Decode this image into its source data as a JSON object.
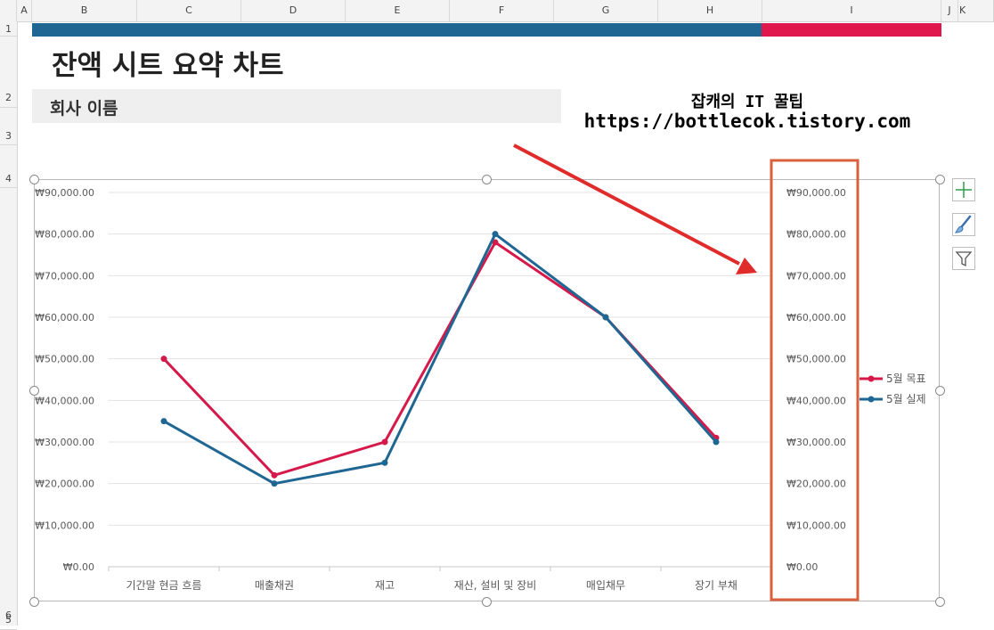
{
  "column_headers": [
    "A",
    "B",
    "C",
    "D",
    "E",
    "F",
    "G",
    "H",
    "I",
    "J",
    "K"
  ],
  "row_headers": [
    "1",
    "2",
    "3",
    "4",
    "5",
    "6"
  ],
  "sheet": {
    "title": "잔액 시트 요약 차트",
    "company_label": "회사 이름",
    "watermark_line1": "잡캐의 IT 꿀팁",
    "watermark_line2": "https://bottlecok.tistory.com"
  },
  "colors": {
    "band_blue": "#1f6792",
    "band_red": "#e0174c",
    "highlight_box": "#d9603b",
    "arrow": "#e02b2b"
  },
  "side_buttons": [
    {
      "icon": "plus-icon"
    },
    {
      "icon": "brush-icon"
    },
    {
      "icon": "filter-icon"
    }
  ],
  "chart_data": {
    "type": "line",
    "categories": [
      "기간말 현금 흐름",
      "매출채권",
      "재고",
      "재산, 설비 및 장비",
      "매입채무",
      "장기 부채"
    ],
    "series": [
      {
        "name": "5월 목표",
        "color": "#d6194b",
        "values": [
          50000,
          22000,
          30000,
          78000,
          60000,
          31000
        ]
      },
      {
        "name": "5월 실제",
        "color": "#1f6792",
        "values": [
          35000,
          20000,
          25000,
          80000,
          60000,
          30000
        ]
      }
    ],
    "ylim": [
      0,
      90000
    ],
    "y_ticks": [
      "₩0.00",
      "₩10,000.00",
      "₩20,000.00",
      "₩30,000.00",
      "₩40,000.00",
      "₩50,000.00",
      "₩60,000.00",
      "₩70,000.00",
      "₩80,000.00",
      "₩90,000.00"
    ],
    "secondary_axis": true,
    "grid": true,
    "legend_position": "right"
  }
}
